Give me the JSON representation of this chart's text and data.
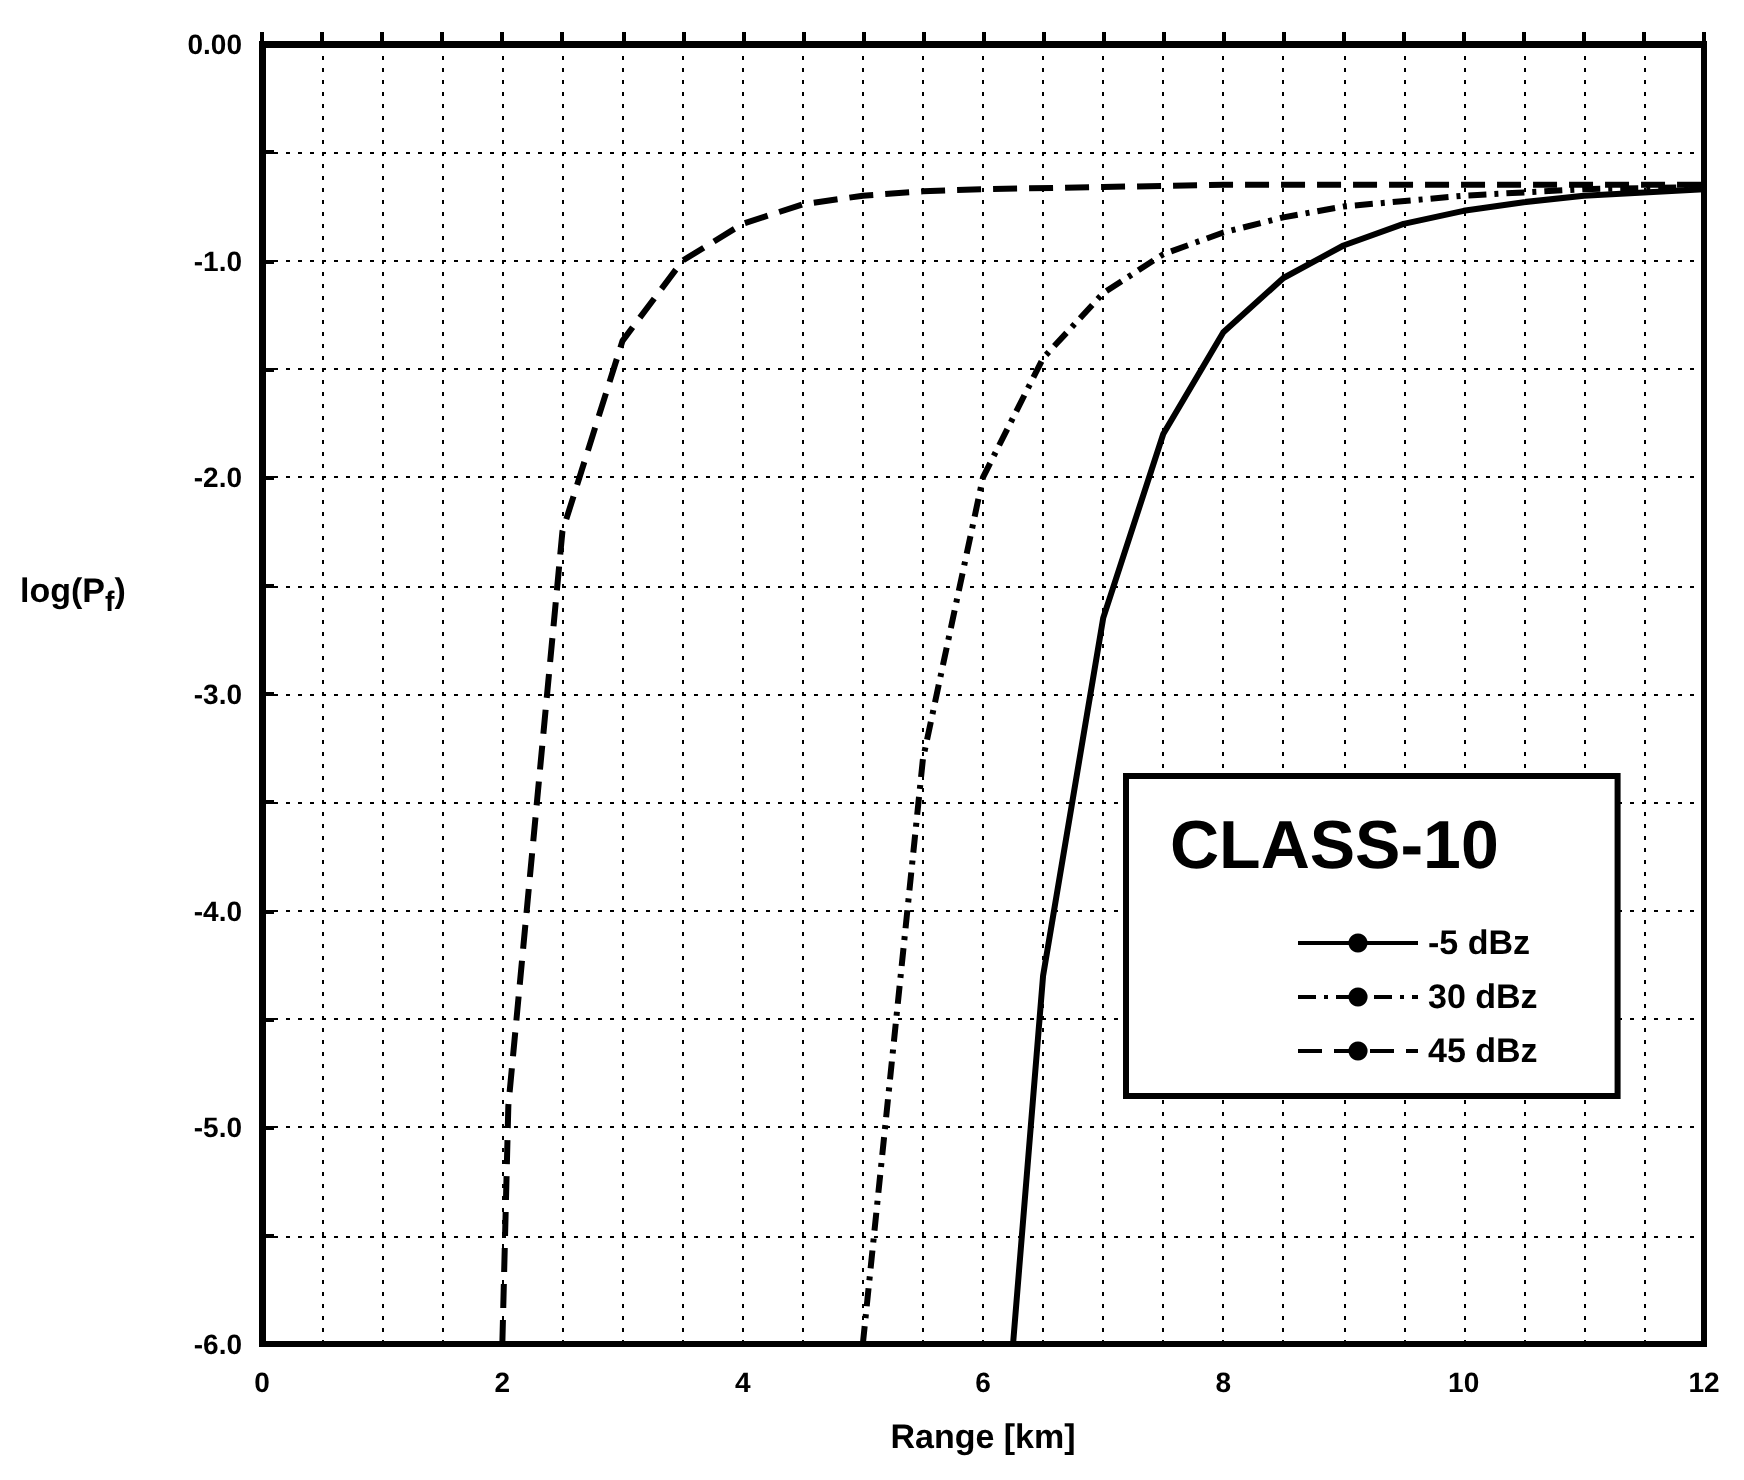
{
  "chart_data": {
    "type": "line",
    "xlabel": "Range [km]",
    "ylabel": "log(P$_{f}$)",
    "legend_title": "CLASS-10",
    "xlim": [
      0,
      12
    ],
    "ylim": [
      -6,
      0
    ],
    "xticks": [
      0,
      {
        "value": 0.5,
        "label": null
      },
      {
        "value": 1,
        "label": null
      },
      {
        "value": 1.5,
        "label": null
      },
      2,
      {
        "value": 2.5,
        "label": null
      },
      {
        "value": 3,
        "label": null
      },
      {
        "value": 3.5,
        "label": null
      },
      4,
      {
        "value": 4.5,
        "label": null
      },
      {
        "value": 5,
        "label": null
      },
      {
        "value": 5.5,
        "label": null
      },
      6,
      {
        "value": 6.5,
        "label": null
      },
      {
        "value": 7,
        "label": null
      },
      {
        "value": 7.5,
        "label": null
      },
      8,
      {
        "value": 8.5,
        "label": null
      },
      {
        "value": 9,
        "label": null
      },
      {
        "value": 9.5,
        "label": null
      },
      10,
      {
        "value": 10.5,
        "label": null
      },
      {
        "value": 11,
        "label": null
      },
      {
        "value": 11.5,
        "label": null
      },
      12
    ],
    "yticks": [
      {
        "value": -6,
        "label": "-6.0"
      },
      {
        "value": -5.5,
        "label": null
      },
      {
        "value": -5,
        "label": "-5.0"
      },
      {
        "value": -4.5,
        "label": null
      },
      {
        "value": -4,
        "label": "-4.0"
      },
      {
        "value": -3.5,
        "label": null
      },
      {
        "value": -3,
        "label": "-3.0"
      },
      {
        "value": -2.5,
        "label": null
      },
      {
        "value": -2,
        "label": "-2.0"
      },
      {
        "value": -1.5,
        "label": null
      },
      {
        "value": -1,
        "label": "-1.0"
      },
      {
        "value": -0.5,
        "label": null
      },
      {
        "value": 0,
        "label": "0.00"
      }
    ],
    "grid": true,
    "legend": "bottom right",
    "marker": "none",
    "series": [
      {
        "name": "-5 dBz",
        "color": "#000000",
        "line_style": "solid",
        "x": [
          6.25,
          6.5,
          7.0,
          7.5,
          8.0,
          8.5,
          9.0,
          9.5,
          10.0,
          10.5,
          11.0,
          12.0
        ],
        "values": [
          -6.0,
          -4.3,
          -2.65,
          -1.8,
          -1.33,
          -1.08,
          -0.93,
          -0.83,
          -0.77,
          -0.73,
          -0.7,
          -0.67
        ]
      },
      {
        "name": "30 dBz",
        "color": "#000000",
        "line_style": "dashdot",
        "x": [
          5.0,
          5.5,
          6.0,
          6.5,
          7.0,
          7.5,
          8.0,
          8.5,
          9.0,
          10.0,
          11.0,
          12.0
        ],
        "values": [
          -6.0,
          -3.3,
          -2.0,
          -1.45,
          -1.15,
          -0.97,
          -0.87,
          -0.8,
          -0.75,
          -0.7,
          -0.67,
          -0.66
        ]
      },
      {
        "name": "45 dBz",
        "color": "#000000",
        "line_style": "dashed",
        "x": [
          2.0,
          2.05,
          2.5,
          3.0,
          3.5,
          4.0,
          4.5,
          5.0,
          5.5,
          6.0,
          7.0,
          8.0,
          10.0,
          12.0
        ],
        "values": [
          -6.0,
          -4.9,
          -2.25,
          -1.37,
          -1.0,
          -0.83,
          -0.74,
          -0.7,
          -0.68,
          -0.67,
          -0.66,
          -0.65,
          -0.65,
          -0.65
        ]
      }
    ]
  }
}
